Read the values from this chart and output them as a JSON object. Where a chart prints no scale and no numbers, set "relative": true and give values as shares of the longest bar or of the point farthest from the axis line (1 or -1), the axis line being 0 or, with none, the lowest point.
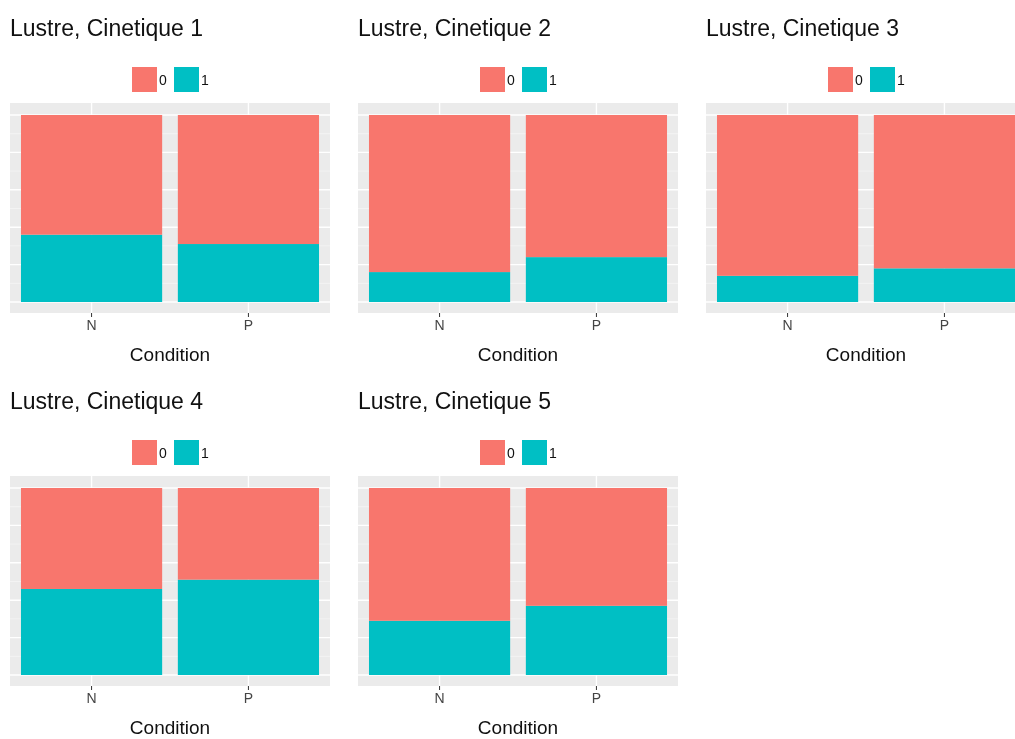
{
  "chart_data": [
    {
      "type": "bar",
      "title": "Lustre, Cinetique 1",
      "xlabel": "Condition",
      "categories": [
        "N",
        "P"
      ],
      "stacked": true,
      "relative": true,
      "grid": true,
      "legend": "top",
      "series": [
        {
          "name": "1",
          "color": "#00bfc4",
          "values": [
            0.36,
            0.31
          ]
        },
        {
          "name": "0",
          "color": "#f8766d",
          "values": [
            0.64,
            0.69
          ]
        }
      ]
    },
    {
      "type": "bar",
      "title": "Lustre, Cinetique 2",
      "xlabel": "Condition",
      "categories": [
        "N",
        "P"
      ],
      "stacked": true,
      "relative": true,
      "grid": true,
      "legend": "top",
      "series": [
        {
          "name": "1",
          "color": "#00bfc4",
          "values": [
            0.16,
            0.24
          ]
        },
        {
          "name": "0",
          "color": "#f8766d",
          "values": [
            0.84,
            0.76
          ]
        }
      ]
    },
    {
      "type": "bar",
      "title": "Lustre, Cinetique 3",
      "xlabel": "Condition",
      "categories": [
        "N",
        "P"
      ],
      "stacked": true,
      "relative": true,
      "grid": true,
      "legend": "top",
      "series": [
        {
          "name": "1",
          "color": "#00bfc4",
          "values": [
            0.14,
            0.18
          ]
        },
        {
          "name": "0",
          "color": "#f8766d",
          "values": [
            0.86,
            0.82
          ]
        }
      ]
    },
    {
      "type": "bar",
      "title": "Lustre, Cinetique 4",
      "xlabel": "Condition",
      "categories": [
        "N",
        "P"
      ],
      "stacked": true,
      "relative": true,
      "grid": true,
      "legend": "top",
      "series": [
        {
          "name": "1",
          "color": "#00bfc4",
          "values": [
            0.46,
            0.51
          ]
        },
        {
          "name": "0",
          "color": "#f8766d",
          "values": [
            0.54,
            0.49
          ]
        }
      ]
    },
    {
      "type": "bar",
      "title": "Lustre, Cinetique 5",
      "xlabel": "Condition",
      "categories": [
        "N",
        "P"
      ],
      "stacked": true,
      "relative": true,
      "grid": true,
      "legend": "top",
      "series": [
        {
          "name": "1",
          "color": "#00bfc4",
          "values": [
            0.29,
            0.37
          ]
        },
        {
          "name": "0",
          "color": "#f8766d",
          "values": [
            0.71,
            0.63
          ]
        }
      ]
    }
  ]
}
